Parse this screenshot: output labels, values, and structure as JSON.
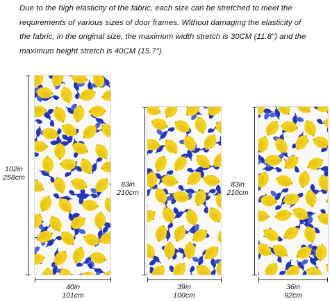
{
  "description": {
    "lines": [
      "Due to the high elasticity of the fabric, each size can be stretched to meet the",
      "requirements of various sizes of door frames. Without damaging the elasticity of",
      "the fabric, in the original size, the maximum width stretch is 30CM (11.8\") and the",
      "maximum height stretch is 40CM (15.7\")."
    ]
  },
  "colors": {
    "lemon": "#f2d21e",
    "lemon_shade": "#d9b40f",
    "leaf": "#2435b4",
    "leaf_light": "#4a63d6",
    "background": "#f8f8f8",
    "line": "#222222"
  },
  "pattern": {
    "motif": "lemons-and-blue-leaves"
  },
  "panels": [
    {
      "height_in": "102in",
      "height_cm": "258cm",
      "width_in": "40in",
      "width_cm": "101cm"
    },
    {
      "height_in": "83in",
      "height_cm": "210cm",
      "width_in": "39in",
      "width_cm": "100cm"
    },
    {
      "height_in": "83in",
      "height_cm": "210cm",
      "width_in": "36in",
      "width_cm": "92cm"
    }
  ]
}
